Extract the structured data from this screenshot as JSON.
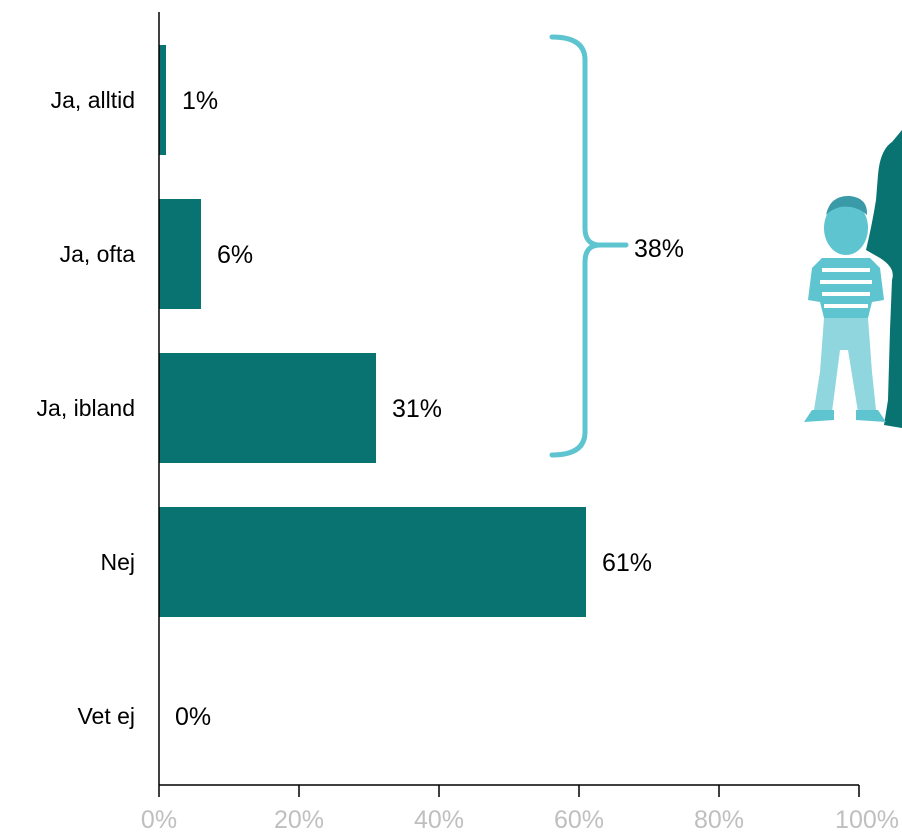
{
  "chart_data": {
    "type": "bar",
    "orientation": "horizontal",
    "categories": [
      "Ja, alltid",
      "Ja, ofta",
      "Ja, ibland",
      "Nej",
      "Vet ej"
    ],
    "values": [
      1,
      6,
      31,
      61,
      0
    ],
    "value_labels": [
      "1%",
      "6%",
      "31%",
      "61%",
      "0%"
    ],
    "xlim": [
      0,
      100
    ],
    "x_ticks": [
      "0%",
      "20%",
      "40%",
      "60%",
      "80%",
      "100%"
    ],
    "title": "",
    "xlabel": "",
    "ylabel": "",
    "grid": false,
    "bar_color": "#087370",
    "annotation": {
      "type": "brace",
      "spans_categories": [
        "Ja, alltid",
        "Ja, ofta",
        "Ja, ibland"
      ],
      "label": "38%",
      "color": "#5ec4d0"
    },
    "illustration": "child-and-adult-silhouette"
  }
}
